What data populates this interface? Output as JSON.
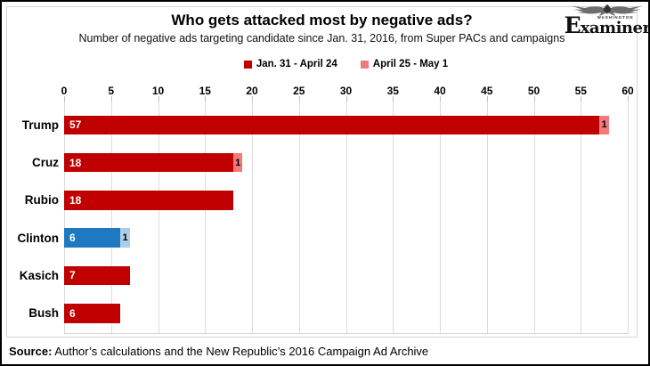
{
  "logo": {
    "kicker": "WASHINGTON",
    "brand_initial": "E",
    "brand_rest": "xaminer"
  },
  "source": {
    "label": "Source:",
    "text": " Author’s calculations and the New Republic’s 2016 Campaign Ad Archive"
  },
  "chart_data": {
    "type": "bar",
    "orientation": "horizontal",
    "title": "Who gets attacked most by negative ads?",
    "subtitle": "Number of negative ads targeting candidate since Jan. 31, 2016, from Super PACs and campaigns",
    "categories": [
      "Trump",
      "Cruz",
      "Rubio",
      "Clinton",
      "Kasich",
      "Bush"
    ],
    "series": [
      {
        "name": "Jan. 31 - April 24",
        "color": "#c00000",
        "values": [
          57,
          18,
          18,
          6,
          7,
          6
        ]
      },
      {
        "name": "April 25 - May 1",
        "color": "#f4797d",
        "values": [
          1,
          1,
          0,
          1,
          0,
          0
        ]
      }
    ],
    "category_color_overrides": {
      "Clinton": {
        "primary": "#1d7ac1",
        "secondary": "#aacdea"
      }
    },
    "xlim": [
      0,
      60
    ],
    "xticks": [
      0,
      5,
      10,
      15,
      20,
      25,
      30,
      35,
      40,
      45,
      50,
      55,
      60
    ],
    "grid": true,
    "legend_position": "top",
    "value_labels": true,
    "colors": {
      "gridline": "#dcdcdc",
      "tick": "#bfbfbf",
      "value_label_main": "#ffffff",
      "value_label_second": "#000000"
    }
  }
}
